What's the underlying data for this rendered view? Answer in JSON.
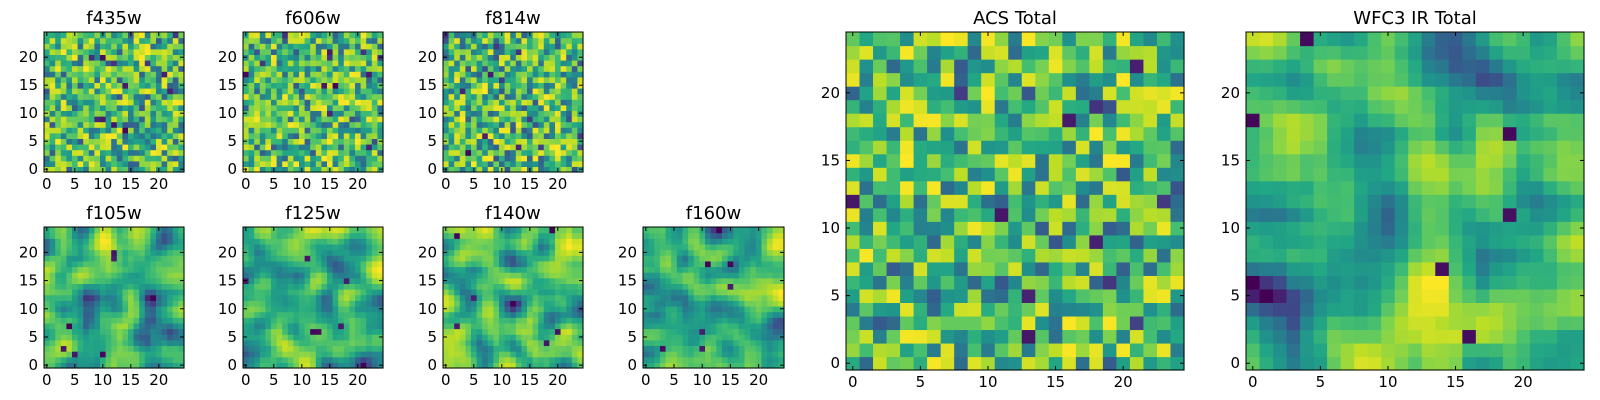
{
  "chart_data": [
    {
      "type": "heatmap",
      "title": "f435w",
      "grid_size": 25,
      "x_ticks": [
        0,
        5,
        10,
        15,
        20
      ],
      "y_ticks": [
        0,
        5,
        10,
        15,
        20
      ],
      "xlim": [
        -0.5,
        24.5
      ],
      "ylim": [
        -0.5,
        24.5
      ],
      "colormap": "viridis",
      "texture": "noise",
      "values": "25x25 pixel-noise map (values not labeled; generated)"
    },
    {
      "type": "heatmap",
      "title": "f606w",
      "grid_size": 25,
      "x_ticks": [
        0,
        5,
        10,
        15,
        20
      ],
      "y_ticks": [
        0,
        5,
        10,
        15,
        20
      ],
      "xlim": [
        -0.5,
        24.5
      ],
      "ylim": [
        -0.5,
        24.5
      ],
      "colormap": "viridis",
      "texture": "noise",
      "values": "25x25 pixel-noise map (values not labeled; generated)"
    },
    {
      "type": "heatmap",
      "title": "f814w",
      "grid_size": 25,
      "x_ticks": [
        0,
        5,
        10,
        15,
        20
      ],
      "y_ticks": [
        0,
        5,
        10,
        15,
        20
      ],
      "xlim": [
        -0.5,
        24.5
      ],
      "ylim": [
        -0.5,
        24.5
      ],
      "colormap": "viridis",
      "texture": "noise",
      "values": "25x25 pixel-noise map (values not labeled; generated)"
    },
    {
      "type": "heatmap",
      "title": "f105w",
      "grid_size": 25,
      "x_ticks": [
        0,
        5,
        10,
        15,
        20
      ],
      "y_ticks": [
        0,
        5,
        10,
        15,
        20
      ],
      "xlim": [
        -0.5,
        24.5
      ],
      "ylim": [
        -0.5,
        24.5
      ],
      "colormap": "viridis",
      "texture": "smooth",
      "values": "25x25 correlated-noise map (values not labeled; generated)"
    },
    {
      "type": "heatmap",
      "title": "f125w",
      "grid_size": 25,
      "x_ticks": [
        0,
        5,
        10,
        15,
        20
      ],
      "y_ticks": [
        0,
        5,
        10,
        15,
        20
      ],
      "xlim": [
        -0.5,
        24.5
      ],
      "ylim": [
        -0.5,
        24.5
      ],
      "colormap": "viridis",
      "texture": "smooth",
      "values": "25x25 correlated-noise map (values not labeled; generated)"
    },
    {
      "type": "heatmap",
      "title": "f140w",
      "grid_size": 25,
      "x_ticks": [
        0,
        5,
        10,
        15,
        20
      ],
      "y_ticks": [
        0,
        5,
        10,
        15,
        20
      ],
      "xlim": [
        -0.5,
        24.5
      ],
      "ylim": [
        -0.5,
        24.5
      ],
      "colormap": "viridis",
      "texture": "smooth",
      "values": "25x25 correlated-noise map (values not labeled; generated)"
    },
    {
      "type": "heatmap",
      "title": "f160w",
      "grid_size": 25,
      "x_ticks": [
        0,
        5,
        10,
        15,
        20
      ],
      "y_ticks": [
        0,
        5,
        10,
        15,
        20
      ],
      "xlim": [
        -0.5,
        24.5
      ],
      "ylim": [
        -0.5,
        24.5
      ],
      "colormap": "viridis",
      "texture": "smooth",
      "values": "25x25 correlated-noise map (values not labeled; generated)"
    },
    {
      "type": "heatmap",
      "title": "ACS Total",
      "grid_size": 25,
      "x_ticks": [
        0,
        5,
        10,
        15,
        20
      ],
      "y_ticks": [
        0,
        5,
        10,
        15,
        20
      ],
      "xlim": [
        -0.5,
        24.5
      ],
      "ylim": [
        -0.5,
        24.5
      ],
      "colormap": "viridis",
      "texture": "noise",
      "values": "25x25 pixel-noise map (values not labeled; generated)"
    },
    {
      "type": "heatmap",
      "title": "WFC3 IR Total",
      "grid_size": 25,
      "x_ticks": [
        0,
        5,
        10,
        15,
        20
      ],
      "y_ticks": [
        0,
        5,
        10,
        15,
        20
      ],
      "xlim": [
        -0.5,
        24.5
      ],
      "ylim": [
        -0.5,
        24.5
      ],
      "colormap": "viridis",
      "texture": "smooth",
      "values": "25x25 correlated-noise map (values not labeled; generated)"
    }
  ],
  "colors": {
    "dark": "#440154",
    "mid": "#21918c",
    "light": "#fde725",
    "axes": "#000000"
  }
}
